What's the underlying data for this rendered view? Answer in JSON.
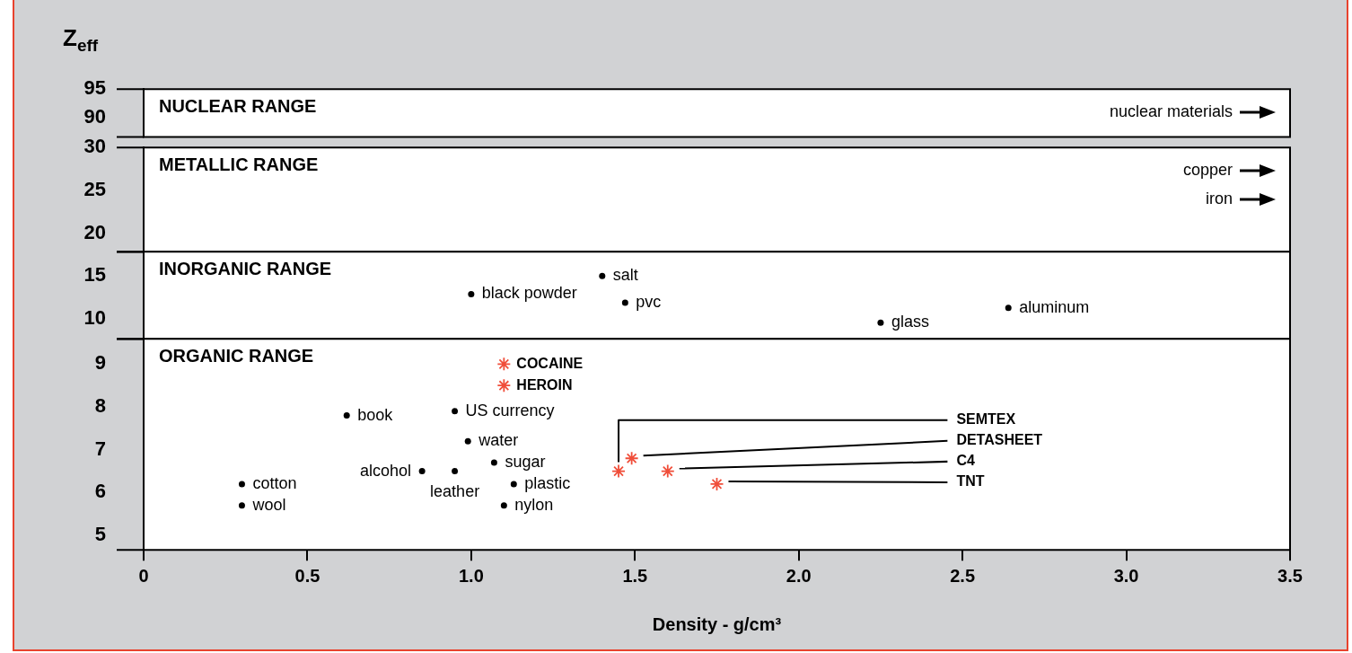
{
  "chart_data": [
    {
      "type": "scatter",
      "title": "NUCLEAR RANGE",
      "ylabel": "Z$_{eff}$",
      "xlim": [
        0,
        3.5
      ],
      "ylim": [
        86.7,
        95
      ],
      "yticks": [
        90,
        95
      ],
      "tick_labels": "y",
      "grid": false,
      "annotations": [
        "nuclear materials"
      ]
    },
    {
      "type": "scatter",
      "title": "METALLIC RANGE",
      "xlim": [
        0,
        3.5
      ],
      "ylim": [
        17.9,
        30
      ],
      "yticks": [
        20,
        25,
        30
      ],
      "tick_labels": "y",
      "grid": false,
      "annotations": [
        "copper",
        "iron"
      ]
    },
    {
      "type": "scatter",
      "title": "INORGANIC RANGE",
      "xlim": [
        0,
        3.5
      ],
      "ylim": [
        7.7,
        17.8
      ],
      "yticks": [
        10,
        15
      ],
      "tick_labels": "y",
      "grid": false,
      "series": [
        {
          "name": "black powder",
          "color": "#000000",
          "marker": "circle",
          "x": [
            1.0
          ],
          "values": [
            12.9
          ]
        },
        {
          "name": "salt",
          "color": "#000000",
          "marker": "circle",
          "x": [
            1.4
          ],
          "values": [
            15.0
          ]
        },
        {
          "name": "pvc",
          "color": "#000000",
          "marker": "circle",
          "x": [
            1.47
          ],
          "values": [
            11.9
          ]
        },
        {
          "name": "glass",
          "color": "#000000",
          "marker": "circle",
          "x": [
            2.25
          ],
          "values": [
            9.6
          ]
        },
        {
          "name": "aluminum",
          "color": "#000000",
          "marker": "circle",
          "x": [
            2.64
          ],
          "values": [
            11.3
          ]
        }
      ]
    },
    {
      "type": "scatter",
      "title": "ORGANIC RANGE",
      "xlabel": "Density - g/cm³",
      "xlim": [
        0,
        3.5
      ],
      "xticks": [
        0,
        0.5,
        {
          "value": 1,
          "label": "1.0"
        },
        1.5,
        {
          "value": 2,
          "label": "2.0"
        },
        2.5,
        {
          "value": 3,
          "label": "3.0"
        },
        3.5
      ],
      "ylim": [
        4.66,
        9.59
      ],
      "yticks": [
        5,
        6,
        7,
        8,
        9
      ],
      "grid": false,
      "series": [
        {
          "name": "cotton",
          "color": "#000000",
          "marker": "circle",
          "x": [
            0.3
          ],
          "values": [
            6.2
          ]
        },
        {
          "name": "wool",
          "color": "#000000",
          "marker": "circle",
          "x": [
            0.3
          ],
          "values": [
            5.7
          ]
        },
        {
          "name": "book",
          "color": "#000000",
          "marker": "circle",
          "x": [
            0.62
          ],
          "values": [
            7.8
          ]
        },
        {
          "name": "alcohol",
          "color": "#000000",
          "marker": "circle",
          "x": [
            0.85
          ],
          "values": [
            6.5
          ]
        },
        {
          "name": "leather",
          "color": "#000000",
          "marker": "circle",
          "x": [
            0.95
          ],
          "values": [
            6.5
          ]
        },
        {
          "name": "US currency",
          "color": "#000000",
          "marker": "circle",
          "x": [
            0.95
          ],
          "values": [
            7.9
          ]
        },
        {
          "name": "water",
          "color": "#000000",
          "marker": "circle",
          "x": [
            0.99
          ],
          "values": [
            7.2
          ]
        },
        {
          "name": "sugar",
          "color": "#000000",
          "marker": "circle",
          "x": [
            1.07
          ],
          "values": [
            6.7
          ]
        },
        {
          "name": "plastic",
          "color": "#000000",
          "marker": "circle",
          "x": [
            1.13
          ],
          "values": [
            6.2
          ]
        },
        {
          "name": "nylon",
          "color": "#000000",
          "marker": "circle",
          "x": [
            1.1
          ],
          "values": [
            5.7
          ]
        },
        {
          "name": "COCAINE",
          "color": "#f04e3a",
          "marker": "cross",
          "x": [
            1.1
          ],
          "values": [
            9.0
          ]
        },
        {
          "name": "HEROIN",
          "color": "#f04e3a",
          "marker": "cross",
          "x": [
            1.1
          ],
          "values": [
            8.5
          ]
        },
        {
          "name": "SEMTEX",
          "color": "#f04e3a",
          "marker": "cross",
          "x": [
            1.45
          ],
          "values": [
            6.5
          ]
        },
        {
          "name": "DETASHEET",
          "color": "#f04e3a",
          "marker": "cross",
          "x": [
            1.49
          ],
          "values": [
            6.8
          ]
        },
        {
          "name": "C4",
          "color": "#f04e3a",
          "marker": "cross",
          "x": [
            1.6
          ],
          "values": [
            6.5
          ]
        },
        {
          "name": "TNT",
          "color": "#f04e3a",
          "marker": "cross",
          "x": [
            1.75
          ],
          "values": [
            6.2
          ]
        }
      ]
    }
  ]
}
